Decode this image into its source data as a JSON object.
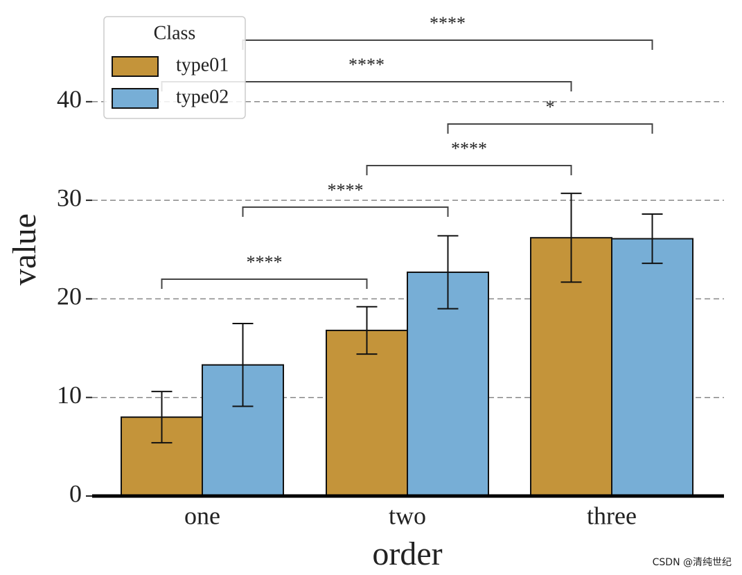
{
  "chart_data": {
    "type": "bar",
    "x_label": "order",
    "y_label": "value",
    "categories": [
      "one",
      "two",
      "three"
    ],
    "series": [
      {
        "name": "type01",
        "color": "#c4943a",
        "values": [
          8.0,
          16.8,
          26.2
        ],
        "errors": [
          2.6,
          2.4,
          4.5
        ]
      },
      {
        "name": "type02",
        "color": "#77aed6",
        "values": [
          13.3,
          22.7,
          26.1
        ],
        "errors": [
          4.2,
          3.7,
          2.5
        ]
      }
    ],
    "ylim": [
      0,
      50
    ],
    "yticks": [
      0,
      10,
      20,
      30,
      40
    ],
    "grid": true,
    "legend": {
      "title": "Class",
      "position": "upper left"
    },
    "annotations": [
      "****",
      "****",
      "****",
      "*",
      "****",
      "****"
    ]
  },
  "watermark": "CSDN @清纯世纪"
}
